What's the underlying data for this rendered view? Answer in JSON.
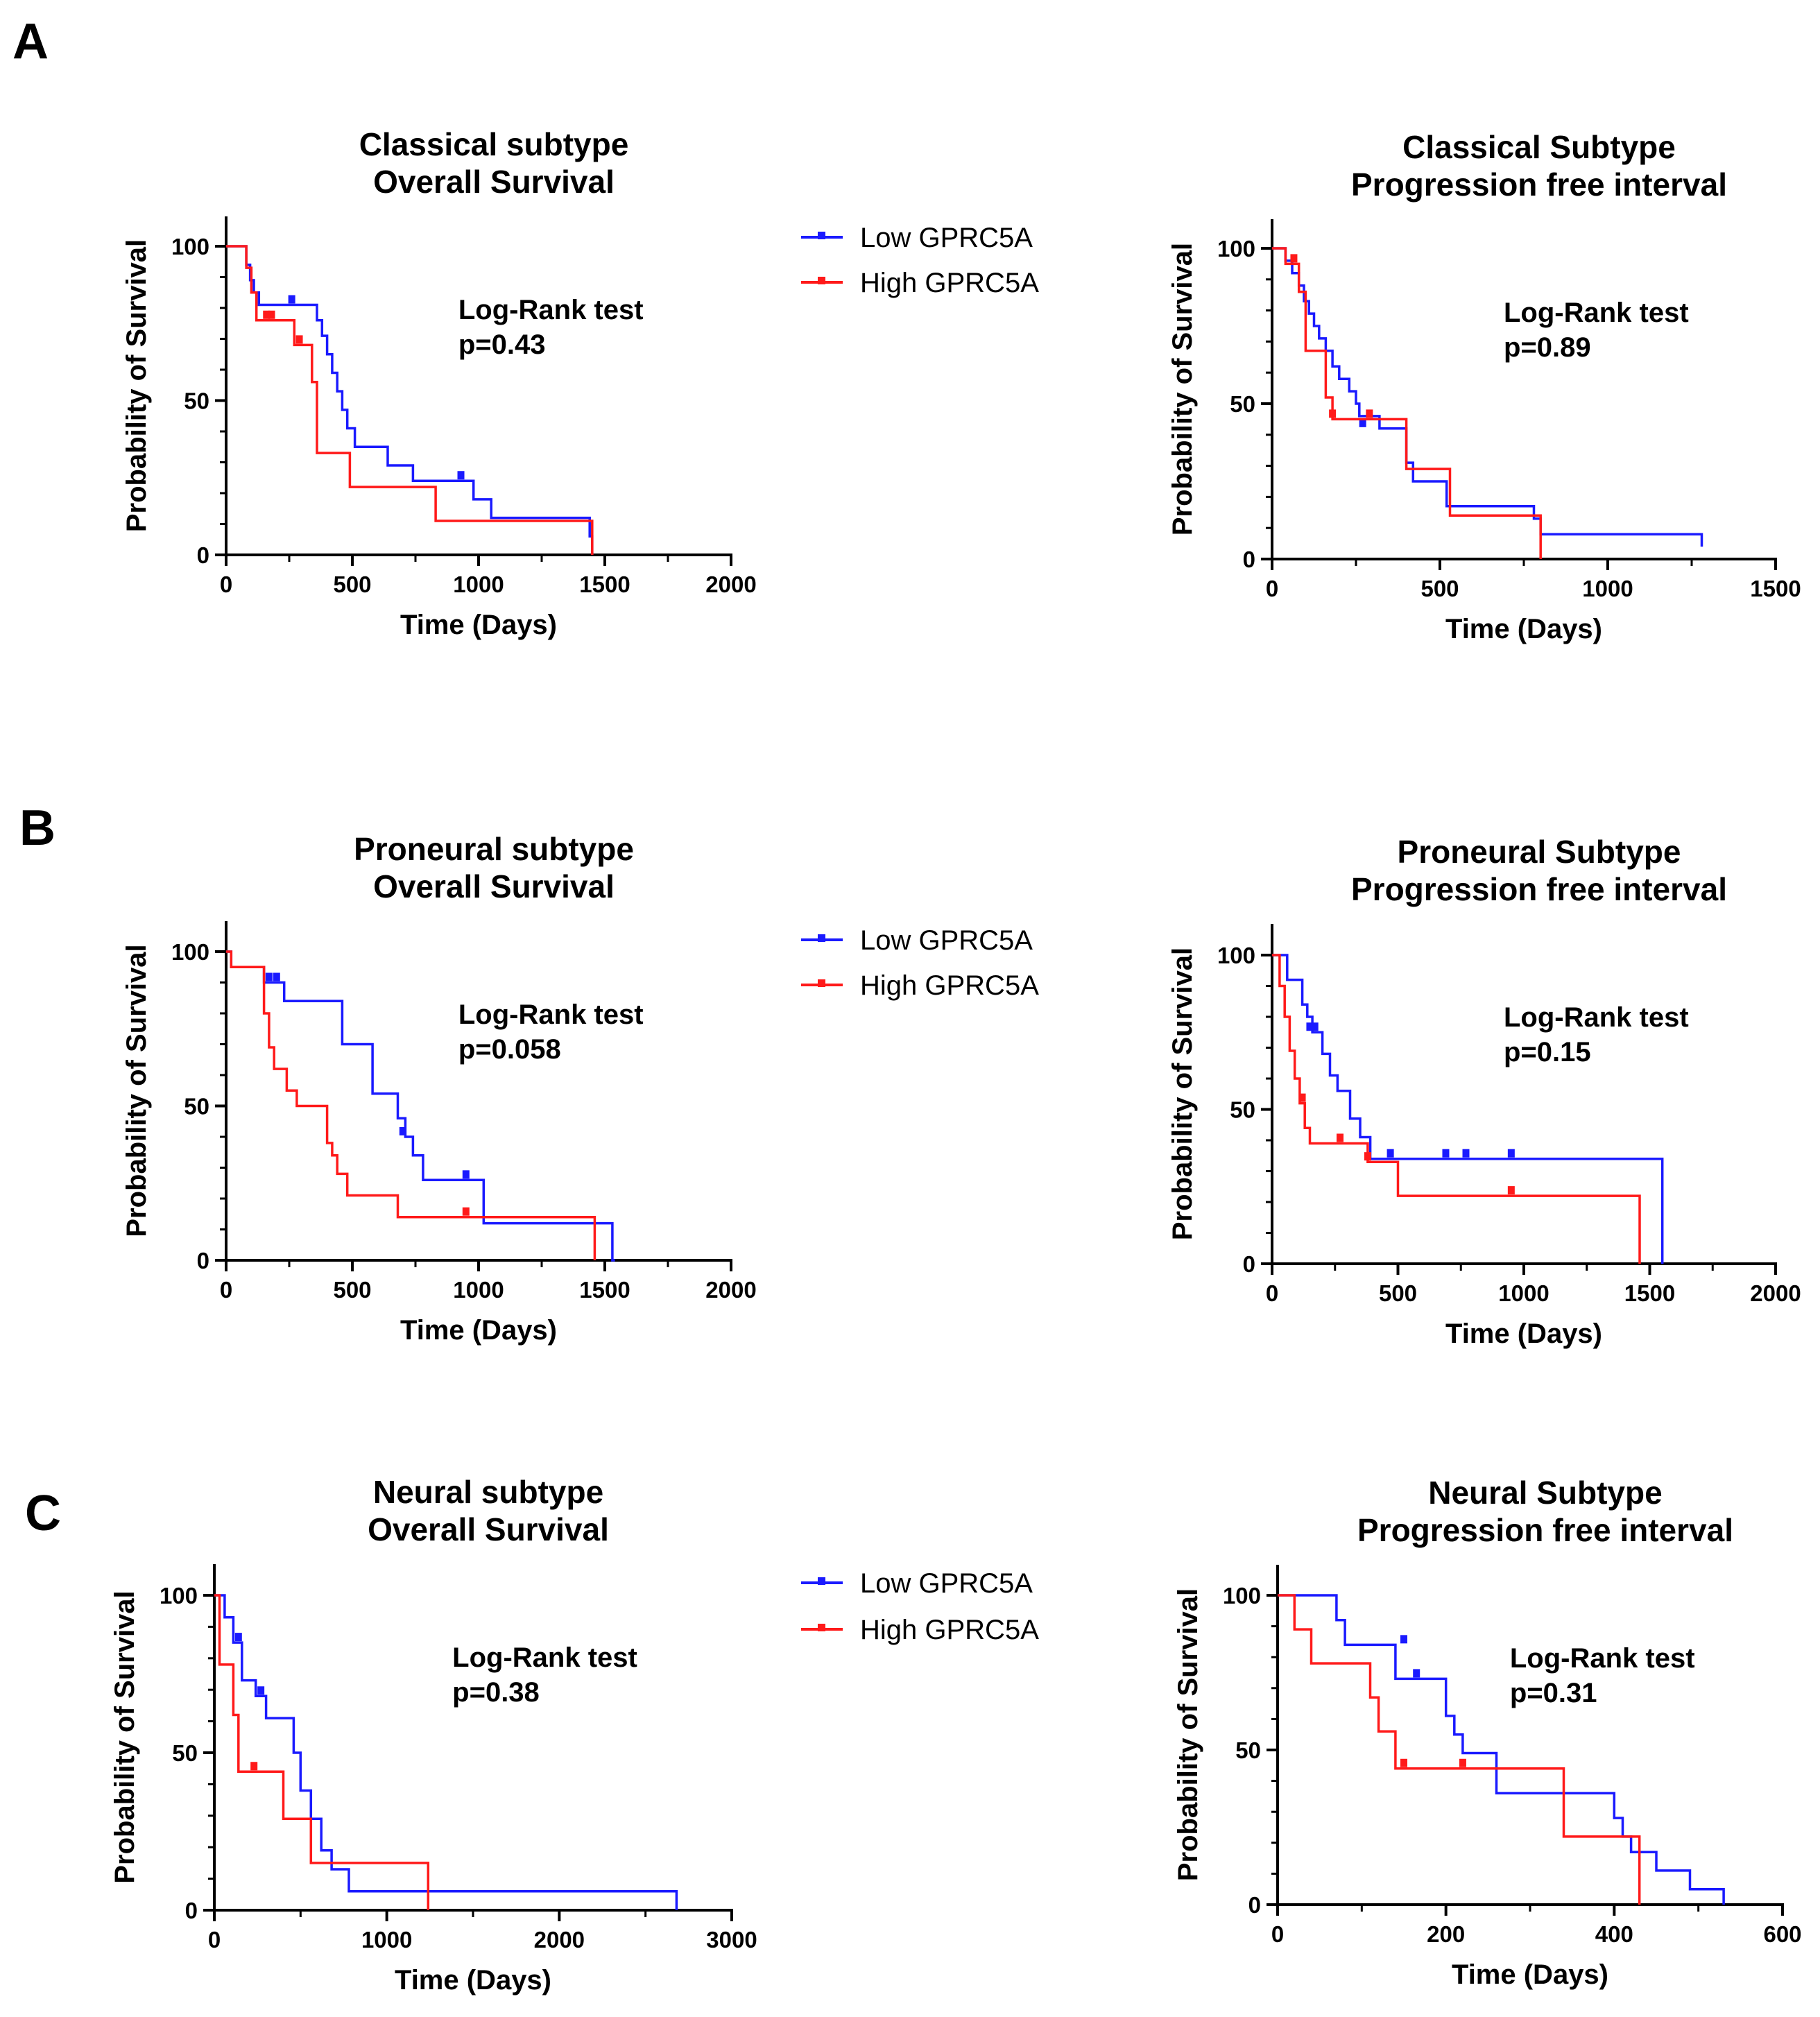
{
  "figure": {
    "panel_labels": [
      "A",
      "B",
      "C"
    ],
    "legend_entries": [
      "Low GPRC5A",
      "High GPRC5A"
    ]
  },
  "colors": {
    "low": "#1a1aff",
    "high": "#ff1a1a",
    "axis": "#000000"
  },
  "chart_data": [
    {
      "type": "line",
      "title": "Classical subtype",
      "subtitle": "Overall Survival",
      "xlabel": "Time (Days)",
      "ylabel": "Probability of Survival",
      "xlim": [
        0,
        2000
      ],
      "ylim": [
        0,
        110
      ],
      "xticks": [
        0,
        500,
        1000,
        1500,
        2000
      ],
      "yticks": [
        0,
        50,
        100
      ],
      "stat_label": "Log-Rank test",
      "p_value": "p=0.43",
      "series": [
        {
          "name": "Low GPRC5A",
          "color": "#1a1aff",
          "x": [
            0,
            80,
            95,
            110,
            130,
            360,
            380,
            400,
            420,
            440,
            460,
            480,
            510,
            640,
            740,
            980,
            1050,
            1440,
            1450
          ],
          "y": [
            100,
            94,
            89,
            85,
            81,
            76,
            71,
            65,
            59,
            53,
            47,
            41,
            35,
            29,
            24,
            18,
            12,
            6,
            0
          ],
          "censor_x": [
            260,
            930
          ],
          "censor_y": [
            81,
            24
          ]
        },
        {
          "name": "High GPRC5A",
          "color": "#ff1a1a",
          "x": [
            0,
            80,
            100,
            120,
            270,
            340,
            360,
            490,
            830,
            1450
          ],
          "y": [
            100,
            93,
            85,
            76,
            68,
            56,
            33,
            22,
            11,
            0
          ],
          "censor_x": [
            160,
            180,
            290
          ],
          "censor_y": [
            76,
            76,
            68
          ]
        }
      ]
    },
    {
      "type": "line",
      "title": "Classical Subtype",
      "subtitle": "Progression free interval",
      "xlabel": "Time (Days)",
      "ylabel": "Probability of Survival",
      "xlim": [
        0,
        1500
      ],
      "ylim": [
        0,
        110
      ],
      "xticks": [
        0,
        500,
        1000,
        1500
      ],
      "yticks": [
        0,
        50,
        100
      ],
      "stat_label": "Log-Rank test",
      "p_value": "p=0.89",
      "series": [
        {
          "name": "Low GPRC5A",
          "color": "#1a1aff",
          "x": [
            0,
            40,
            60,
            80,
            95,
            110,
            125,
            140,
            160,
            180,
            200,
            230,
            250,
            260,
            320,
            400,
            420,
            520,
            780,
            800,
            1280
          ],
          "y": [
            100,
            96,
            92,
            88,
            83,
            79,
            75,
            71,
            67,
            62,
            58,
            54,
            50,
            46,
            42,
            31,
            25,
            17,
            13,
            8,
            4
          ],
          "censor_x": [
            270
          ],
          "censor_y": [
            42
          ]
        },
        {
          "name": "High GPRC5A",
          "color": "#ff1a1a",
          "x": [
            0,
            40,
            80,
            100,
            160,
            180,
            400,
            530,
            800
          ],
          "y": [
            100,
            95,
            86,
            67,
            52,
            45,
            29,
            14,
            0
          ],
          "censor_x": [
            65,
            180,
            290
          ],
          "censor_y": [
            95,
            45,
            45
          ]
        }
      ]
    },
    {
      "type": "line",
      "title": "Proneural subtype",
      "subtitle": "Overall Survival",
      "xlabel": "Time (Days)",
      "ylabel": "Probability of Survival",
      "xlim": [
        0,
        2000
      ],
      "ylim": [
        0,
        110
      ],
      "xticks": [
        0,
        500,
        1000,
        1500,
        2000
      ],
      "yticks": [
        0,
        50,
        100
      ],
      "stat_label": "Log-Rank test",
      "p_value": "p=0.058",
      "series": [
        {
          "name": "Low GPRC5A",
          "color": "#1a1aff",
          "x": [
            0,
            20,
            150,
            230,
            460,
            580,
            680,
            710,
            740,
            780,
            1020,
            1530,
            1540
          ],
          "y": [
            100,
            95,
            90,
            84,
            70,
            54,
            46,
            40,
            34,
            26,
            12,
            0,
            0
          ],
          "censor_x": [
            170,
            200,
            700,
            950
          ],
          "censor_y": [
            90,
            90,
            40,
            26
          ]
        },
        {
          "name": "High GPRC5A",
          "color": "#ff1a1a",
          "x": [
            0,
            20,
            150,
            170,
            190,
            240,
            280,
            400,
            420,
            440,
            480,
            680,
            1460
          ],
          "y": [
            100,
            95,
            80,
            69,
            62,
            55,
            50,
            38,
            34,
            28,
            21,
            14,
            0
          ],
          "censor_x": [
            950
          ],
          "censor_y": [
            14
          ]
        }
      ]
    },
    {
      "type": "line",
      "title": "Proneural Subtype",
      "subtitle": "Progression free interval",
      "xlabel": "Time (Days)",
      "ylabel": "Probability of Survival",
      "xlim": [
        0,
        2000
      ],
      "ylim": [
        0,
        110
      ],
      "xticks": [
        0,
        500,
        1000,
        1500,
        2000
      ],
      "yticks": [
        0,
        50,
        100
      ],
      "stat_label": "Log-Rank test",
      "p_value": "p=0.15",
      "series": [
        {
          "name": "Low GPRC5A",
          "color": "#1a1aff",
          "x": [
            0,
            60,
            120,
            140,
            160,
            200,
            230,
            260,
            310,
            350,
            390,
            1550
          ],
          "y": [
            100,
            92,
            84,
            80,
            75,
            68,
            61,
            56,
            47,
            41,
            34,
            0
          ],
          "censor_x": [
            150,
            170,
            470,
            690,
            770,
            950
          ],
          "censor_y": [
            75,
            75,
            34,
            34,
            34,
            34
          ]
        },
        {
          "name": "High GPRC5A",
          "color": "#ff1a1a",
          "x": [
            0,
            30,
            50,
            70,
            90,
            110,
            130,
            150,
            380,
            500,
            1460
          ],
          "y": [
            100,
            90,
            80,
            69,
            60,
            52,
            44,
            39,
            33,
            22,
            0
          ],
          "censor_x": [
            120,
            270,
            380,
            950
          ],
          "censor_y": [
            52,
            39,
            33,
            22
          ]
        }
      ]
    },
    {
      "type": "line",
      "title": "Neural subtype",
      "subtitle": "Overall Survival",
      "xlabel": "Time (Days)",
      "ylabel": "Probability of Survival",
      "xlim": [
        0,
        3000
      ],
      "ylim": [
        0,
        110
      ],
      "xticks": [
        0,
        1000,
        2000,
        3000
      ],
      "yticks": [
        0,
        50,
        100
      ],
      "stat_label": "Log-Rank test",
      "p_value": "p=0.38",
      "series": [
        {
          "name": "Low GPRC5A",
          "color": "#1a1aff",
          "x": [
            0,
            60,
            110,
            160,
            240,
            300,
            460,
            500,
            560,
            620,
            680,
            780,
            2680
          ],
          "y": [
            100,
            93,
            85,
            73,
            68,
            61,
            50,
            38,
            29,
            19,
            13,
            6,
            0
          ],
          "censor_x": [
            140,
            270
          ],
          "censor_y": [
            85,
            68
          ]
        },
        {
          "name": "High GPRC5A",
          "color": "#ff1a1a",
          "x": [
            0,
            30,
            110,
            140,
            400,
            560,
            1240
          ],
          "y": [
            100,
            78,
            62,
            44,
            29,
            15,
            0
          ],
          "censor_x": [
            230
          ],
          "censor_y": [
            44
          ]
        }
      ]
    },
    {
      "type": "line",
      "title": "Neural Subtype",
      "subtitle": "Progression free interval",
      "xlabel": "Time (Days)",
      "ylabel": "Probability of Survival",
      "xlim": [
        0,
        600
      ],
      "ylim": [
        0,
        110
      ],
      "xticks": [
        0,
        200,
        400,
        600
      ],
      "yticks": [
        0,
        50,
        100
      ],
      "stat_label": "Log-Rank test",
      "p_value": "p=0.31",
      "series": [
        {
          "name": "Low GPRC5A",
          "color": "#1a1aff",
          "x": [
            0,
            70,
            80,
            140,
            200,
            210,
            220,
            260,
            400,
            410,
            420,
            450,
            490,
            530
          ],
          "y": [
            100,
            92,
            84,
            73,
            61,
            55,
            49,
            36,
            28,
            22,
            17,
            11,
            5,
            0
          ],
          "censor_x": [
            150,
            165
          ],
          "censor_y": [
            84,
            73
          ]
        },
        {
          "name": "High GPRC5A",
          "color": "#ff1a1a",
          "x": [
            0,
            20,
            40,
            110,
            120,
            140,
            340,
            430
          ],
          "y": [
            100,
            89,
            78,
            67,
            56,
            44,
            22,
            0
          ],
          "censor_x": [
            150,
            220
          ],
          "censor_y": [
            44,
            44
          ]
        }
      ]
    }
  ]
}
